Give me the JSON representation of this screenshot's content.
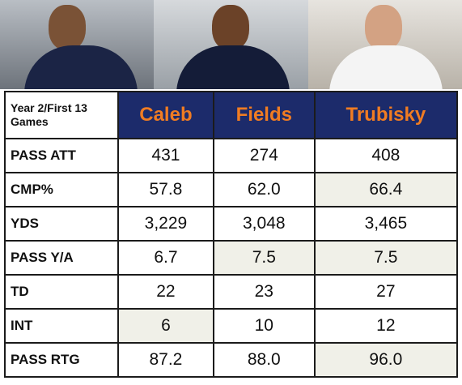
{
  "table": {
    "corner": "Year 2/First 13 Games",
    "columns": [
      "Caleb",
      "Fields",
      "Trubisky"
    ],
    "rows": [
      [
        "PASS ATT",
        "431",
        "274",
        "408"
      ],
      [
        "CMP%",
        "57.8",
        "62.0",
        "66.4"
      ],
      [
        "YDS",
        "3,229",
        "3,048",
        "3,465"
      ],
      [
        "PASS Y/A",
        "6.7",
        "7.5",
        "7.5"
      ],
      [
        "TD",
        "22",
        "23",
        "27"
      ],
      [
        "INT",
        "6",
        "10",
        "12"
      ],
      [
        "PASS RTG",
        "87.2",
        "88.0",
        "96.0"
      ]
    ]
  }
}
